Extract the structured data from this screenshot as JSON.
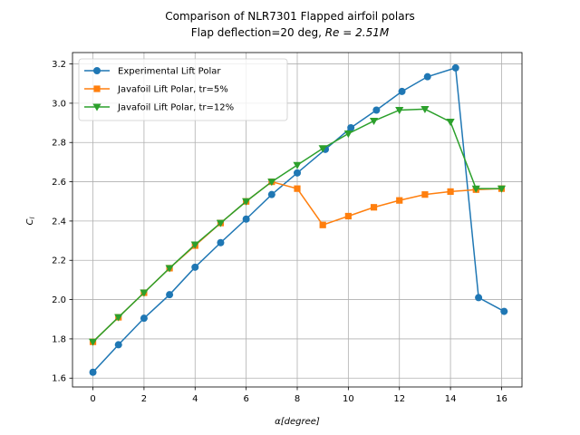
{
  "chart_data": {
    "type": "line",
    "title_line1": "Comparison of NLR7301 Flapped airfoil polars",
    "title_line2_prefix": "Flap deflection=20 deg, ",
    "title_line2_math": "Re = 2.51M",
    "xlabel": "α[degree]",
    "ylabel": "C",
    "ylabel_sub": "l",
    "xlim": [
      -0.8,
      16.8
    ],
    "ylim": [
      1.555,
      3.258
    ],
    "xticks": [
      0,
      2,
      4,
      6,
      8,
      10,
      12,
      14,
      16
    ],
    "yticks": [
      1.6,
      1.8,
      2.0,
      2.2,
      2.4,
      2.6,
      2.8,
      3.0,
      3.2
    ],
    "xtick_labels": [
      "0",
      "2",
      "4",
      "6",
      "8",
      "10",
      "12",
      "14",
      "16"
    ],
    "ytick_labels": [
      "1.6",
      "1.8",
      "2.0",
      "2.2",
      "2.4",
      "2.6",
      "2.8",
      "3.0",
      "3.2"
    ],
    "grid": true,
    "legend_position": "top-left",
    "series": [
      {
        "name": "Experimental Lift Polar",
        "color": "#1f77b4",
        "marker": "circle",
        "x": [
          0,
          1,
          2,
          3,
          4,
          5,
          6,
          7,
          8,
          9.1,
          10.1,
          11.1,
          12.1,
          13.1,
          14.2,
          15.1,
          16.1
        ],
        "y": [
          1.63,
          1.77,
          1.905,
          2.025,
          2.165,
          2.29,
          2.41,
          2.535,
          2.645,
          2.765,
          2.875,
          2.965,
          3.06,
          3.135,
          3.18,
          2.01,
          1.94
        ]
      },
      {
        "name": "Javafoil Lift Polar, tr=5%",
        "color": "#ff7f0e",
        "marker": "square",
        "x": [
          0,
          1,
          2,
          3,
          4,
          5,
          6,
          7,
          8,
          9,
          10,
          11,
          12,
          13,
          14,
          15,
          16
        ],
        "y": [
          1.785,
          1.91,
          2.035,
          2.16,
          2.275,
          2.39,
          2.5,
          2.6,
          2.565,
          2.38,
          2.425,
          2.47,
          2.505,
          2.535,
          2.55,
          2.56,
          2.565
        ]
      },
      {
        "name": "Javafoil Lift Polar, tr=12%",
        "color": "#2ca02c",
        "marker": "triangle-down",
        "x": [
          0,
          1,
          2,
          3,
          4,
          5,
          6,
          7,
          8,
          9,
          10,
          11,
          12,
          13,
          14,
          15,
          16
        ],
        "y": [
          1.785,
          1.91,
          2.035,
          2.16,
          2.28,
          2.39,
          2.5,
          2.6,
          2.685,
          2.77,
          2.845,
          2.91,
          2.965,
          2.97,
          2.905,
          2.565,
          2.565
        ]
      }
    ]
  }
}
